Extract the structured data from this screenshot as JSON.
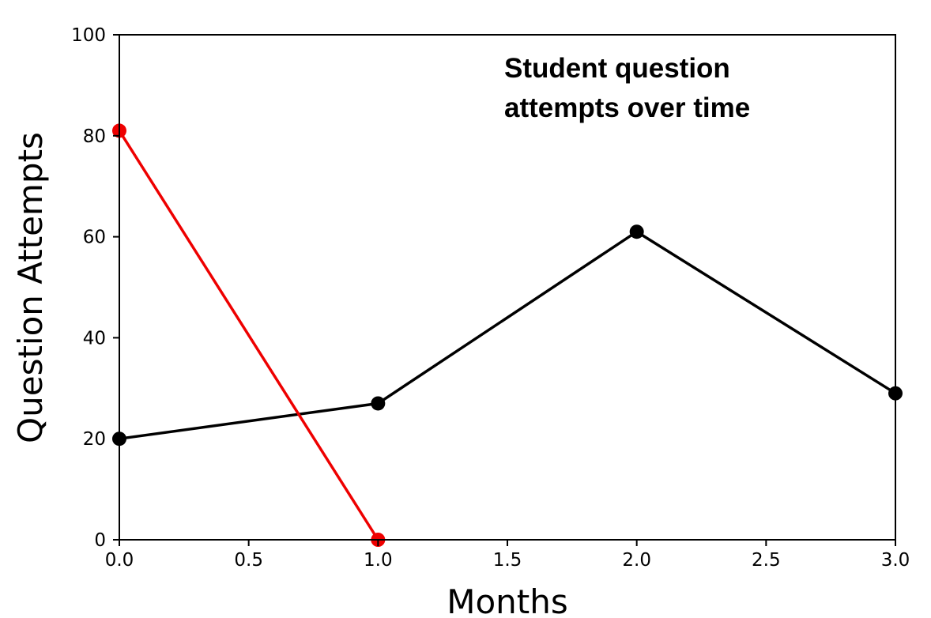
{
  "chart_data": {
    "type": "line",
    "title_lines": [
      "Student question",
      "attempts over time"
    ],
    "xlabel": "Months",
    "ylabel": "Question Attempts",
    "xlim": [
      0,
      3
    ],
    "ylim": [
      0,
      100
    ],
    "xticks": [
      0,
      0.5,
      1,
      1.5,
      2,
      2.5,
      3
    ],
    "xtick_labels": [
      "0.0",
      "0.5",
      "1.0",
      "1.5",
      "2.0",
      "2.5",
      "3.0"
    ],
    "yticks": [
      0,
      20,
      40,
      60,
      80,
      100
    ],
    "ytick_labels": [
      "0",
      "20",
      "40",
      "60",
      "80",
      "100"
    ],
    "grid": false,
    "legend": "none",
    "series": [
      {
        "color": "#000000",
        "x": [
          0,
          1,
          2,
          3
        ],
        "y": [
          20,
          27,
          61,
          29
        ]
      },
      {
        "color": "#ee0000",
        "x": [
          0,
          1
        ],
        "y": [
          81,
          0
        ]
      }
    ]
  }
}
